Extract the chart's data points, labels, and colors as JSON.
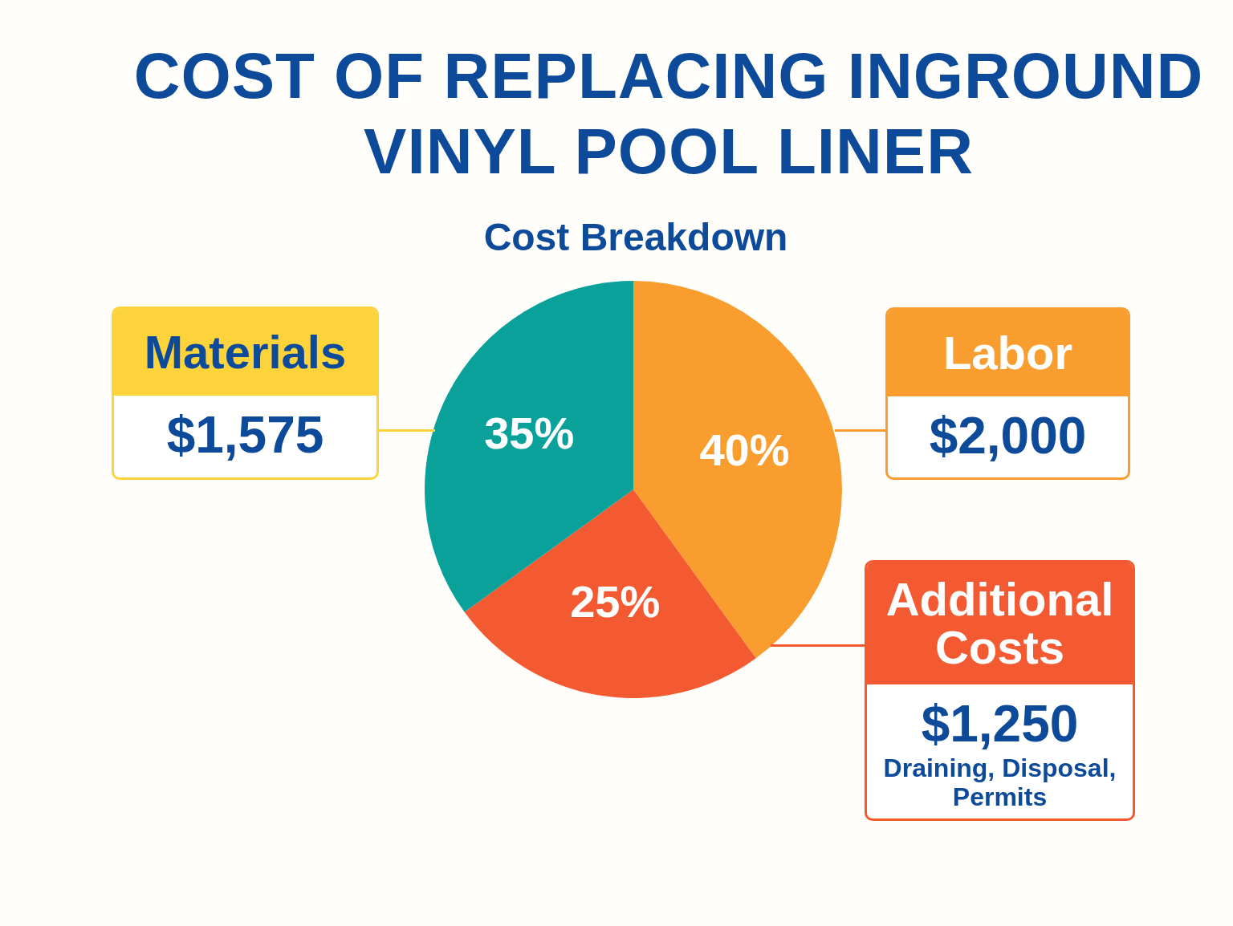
{
  "chart_data": {
    "type": "pie",
    "title": "COST OF REPLACING INGROUND VINYL POOL LINER",
    "subtitle": "Cost Breakdown",
    "categories": [
      "Labor",
      "Additional Costs",
      "Materials"
    ],
    "values": [
      40,
      25,
      35
    ],
    "colors": [
      "#f99d2e",
      "#f45a32",
      "#09a19a"
    ],
    "value_labels": [
      "40%",
      "25%",
      "35%"
    ],
    "annotations": [
      "$2,000",
      "$1,250",
      "Draining, Disposal, Permits",
      "$1,575"
    ]
  }
}
